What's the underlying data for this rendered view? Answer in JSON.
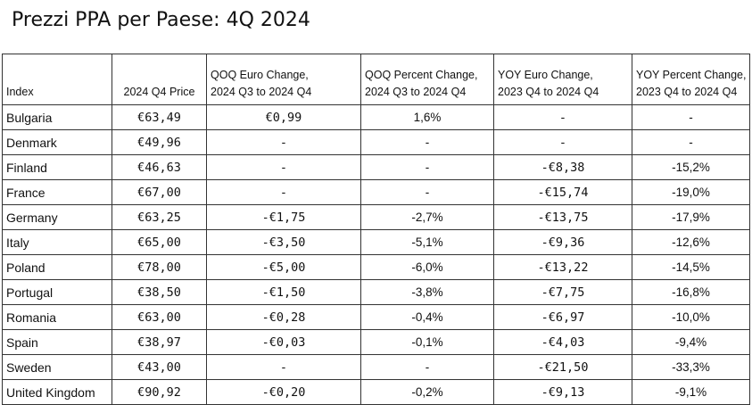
{
  "title": "Prezzi PPA per Paese: 4Q 2024",
  "table": {
    "headers": {
      "index": "Index",
      "price": "2024 Q4 Price",
      "qoq_euro_1": "QOQ Euro Change,",
      "qoq_euro_2": "2024 Q3 to 2024 Q4",
      "qoq_pct_1": "QOQ Percent Change,",
      "qoq_pct_2": "2024 Q3 to 2024 Q4",
      "yoy_euro_1": "YOY Euro Change,",
      "yoy_euro_2": "2023 Q4 to 2024 Q4",
      "yoy_pct_1": "YOY Percent Change,",
      "yoy_pct_2": "2023 Q4 to 2024 Q4"
    },
    "rows": [
      {
        "index": "Bulgaria",
        "price": "€63,49",
        "qoq_euro": "€0,99",
        "qoq_pct": "1,6%",
        "yoy_euro": "-",
        "yoy_pct": "-"
      },
      {
        "index": "Denmark",
        "price": "€49,96",
        "qoq_euro": "-",
        "qoq_pct": "-",
        "yoy_euro": "-",
        "yoy_pct": "-"
      },
      {
        "index": "Finland",
        "price": "€46,63",
        "qoq_euro": "-",
        "qoq_pct": "-",
        "yoy_euro": "-€8,38",
        "yoy_pct": "-15,2%"
      },
      {
        "index": "France",
        "price": "€67,00",
        "qoq_euro": "-",
        "qoq_pct": "-",
        "yoy_euro": "-€15,74",
        "yoy_pct": "-19,0%"
      },
      {
        "index": "Germany",
        "price": "€63,25",
        "qoq_euro": "-€1,75",
        "qoq_pct": "-2,7%",
        "yoy_euro": "-€13,75",
        "yoy_pct": "-17,9%"
      },
      {
        "index": "Italy",
        "price": "€65,00",
        "qoq_euro": "-€3,50",
        "qoq_pct": "-5,1%",
        "yoy_euro": "-€9,36",
        "yoy_pct": "-12,6%"
      },
      {
        "index": "Poland",
        "price": "€78,00",
        "qoq_euro": "-€5,00",
        "qoq_pct": "-6,0%",
        "yoy_euro": "-€13,22",
        "yoy_pct": "-14,5%"
      },
      {
        "index": "Portugal",
        "price": "€38,50",
        "qoq_euro": "-€1,50",
        "qoq_pct": "-3,8%",
        "yoy_euro": "-€7,75",
        "yoy_pct": "-16,8%"
      },
      {
        "index": "Romania",
        "price": "€63,00",
        "qoq_euro": "-€0,28",
        "qoq_pct": "-0,4%",
        "yoy_euro": "-€6,97",
        "yoy_pct": "-10,0%"
      },
      {
        "index": "Spain",
        "price": "€38,97",
        "qoq_euro": "-€0,03",
        "qoq_pct": "-0,1%",
        "yoy_euro": "-€4,03",
        "yoy_pct": "-9,4%"
      },
      {
        "index": "Sweden",
        "price": "€43,00",
        "qoq_euro": "-",
        "qoq_pct": "-",
        "yoy_euro": "-€21,50",
        "yoy_pct": "-33,3%"
      },
      {
        "index": "United Kingdom",
        "price": "€90,92",
        "qoq_euro": "-€0,20",
        "qoq_pct": "-0,2%",
        "yoy_euro": "-€9,13",
        "yoy_pct": "-9,1%"
      }
    ]
  }
}
